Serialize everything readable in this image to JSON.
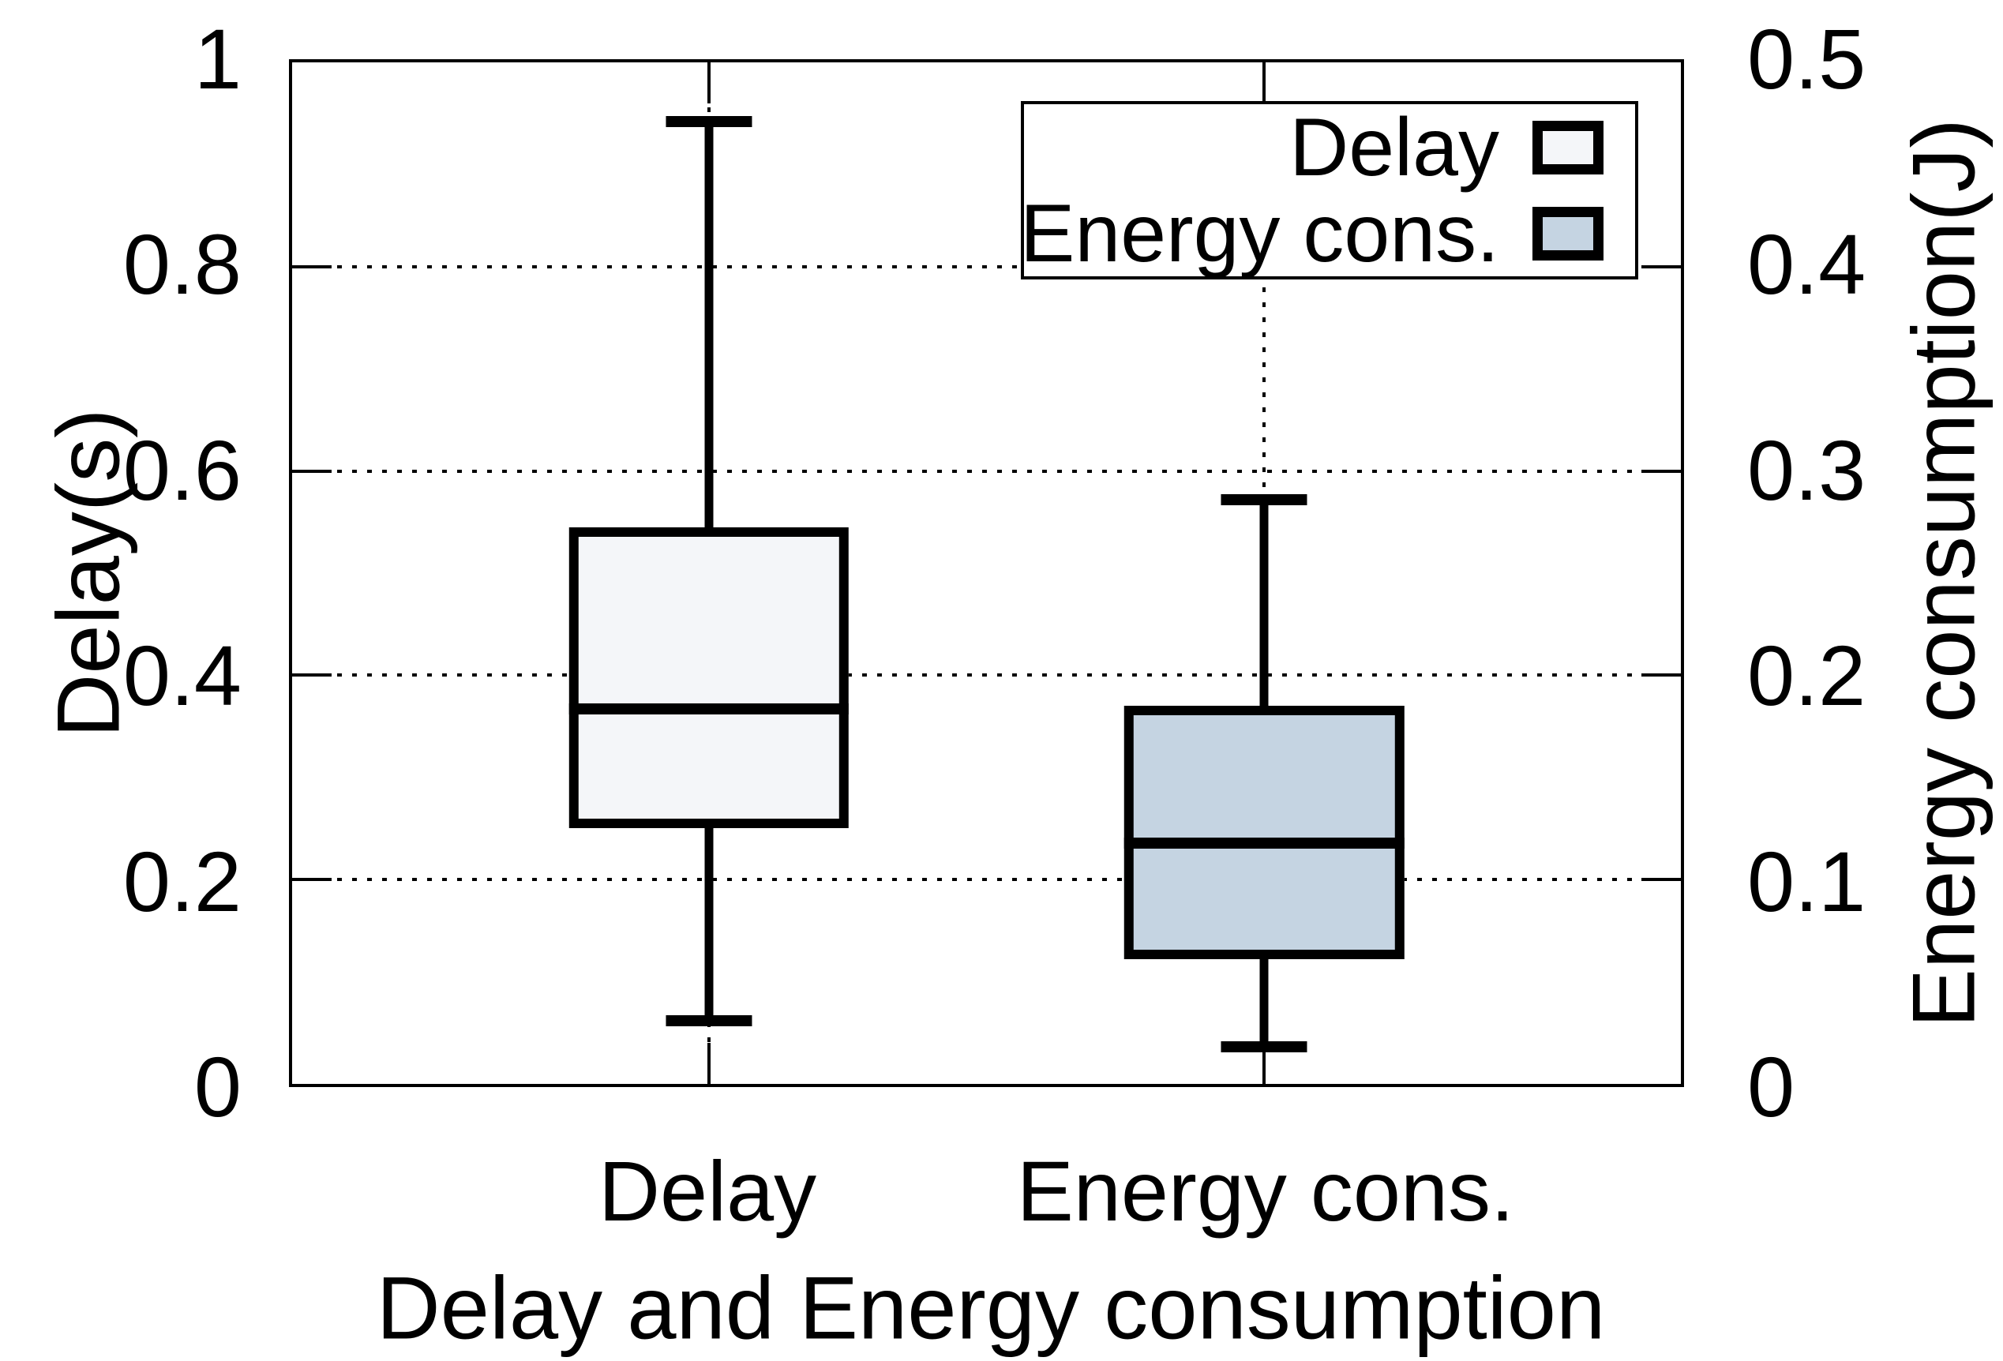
{
  "legend": {
    "items": [
      {
        "label": "Delay",
        "color": "#f4f6f9"
      },
      {
        "label": "Energy cons.",
        "color": "#c5d4e2"
      }
    ]
  },
  "chart_data": {
    "type": "boxplot",
    "x_title": "Delay and Energy consumption",
    "grid": "dotted horizontal at each tick, dotted vertical at each category",
    "legend_position": "top-right inside plot",
    "left_axis": {
      "label": "Delay(s)",
      "min": 0,
      "max": 1,
      "ticks": [
        {
          "v": 0,
          "t": "0"
        },
        {
          "v": 0.2,
          "t": "0.2"
        },
        {
          "v": 0.4,
          "t": "0.4"
        },
        {
          "v": 0.6,
          "t": "0.6"
        },
        {
          "v": 0.8,
          "t": "0.8"
        },
        {
          "v": 1,
          "t": "1"
        }
      ]
    },
    "right_axis": {
      "label": "Energy consumption(J)",
      "min": 0,
      "max": 0.5,
      "ticks": [
        {
          "v": 0,
          "t": "0"
        },
        {
          "v": 0.1,
          "t": "0.1"
        },
        {
          "v": 0.2,
          "t": "0.2"
        },
        {
          "v": 0.3,
          "t": "0.3"
        },
        {
          "v": 0.4,
          "t": "0.4"
        },
        {
          "v": 0.5,
          "t": "0.5"
        }
      ]
    },
    "x_axis": {
      "items": [
        {
          "label": "Delay",
          "frac": 0.3
        },
        {
          "label": "Energy cons.",
          "frac": 0.7
        }
      ]
    },
    "series": [
      {
        "name": "Delay",
        "axis": "left",
        "unit": "s",
        "x_frac": 0.3,
        "axis_max": 1.0,
        "whisker_low": 0.062,
        "q1": 0.25,
        "median": 0.367,
        "q3": 0.545,
        "whisker_high": 0.942,
        "fill": "#f4f6f9"
      },
      {
        "name": "Energy cons.",
        "axis": "right",
        "unit": "J",
        "x_frac": 0.7,
        "axis_max": 0.5,
        "whisker_low": 0.018,
        "q1": 0.061,
        "median": 0.118,
        "q3": 0.185,
        "whisker_high": 0.286,
        "fill": "#c5d4e2"
      }
    ],
    "box_width_frac": 0.2015,
    "cap_width_frac": 0.062
  }
}
